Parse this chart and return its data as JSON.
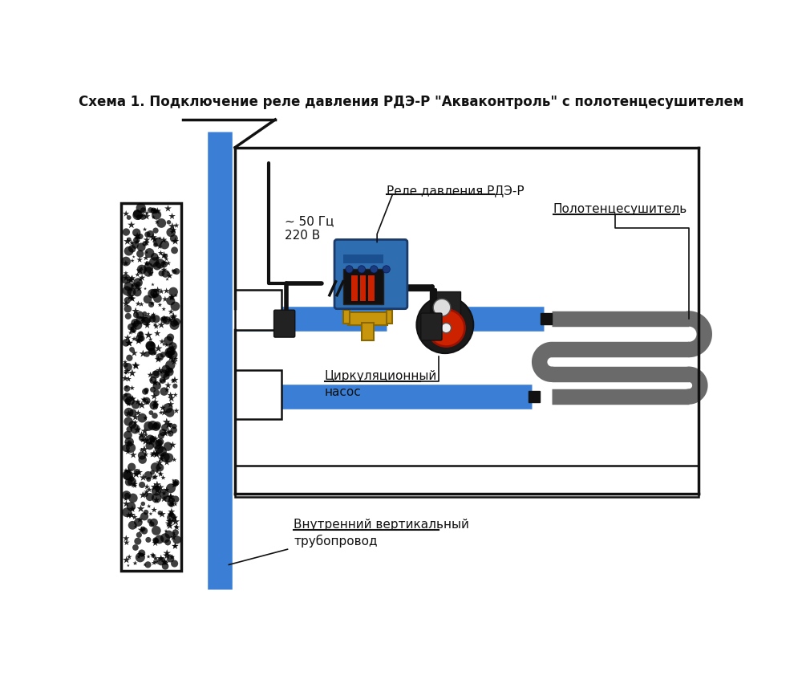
{
  "title": "Схема 1. Подключение реле давления РДЭ-Р \"Акваконтроль\" с полотенцесушителем",
  "bg_color": "#ffffff",
  "wall_color": "#111111",
  "pipe_blue_color": "#3a7fd5",
  "pipe_gray_color": "#7a7a7a",
  "text_color": "#111111",
  "label_relay": "Реле давления РДЭ-Р",
  "label_pump": "Циркуляционный\nнасос",
  "label_towel": "Полотенцесушитель",
  "label_pipe": "Внутренний вертикальный\nтрубопровод",
  "label_power": "~ 50 Гц\n220 В"
}
